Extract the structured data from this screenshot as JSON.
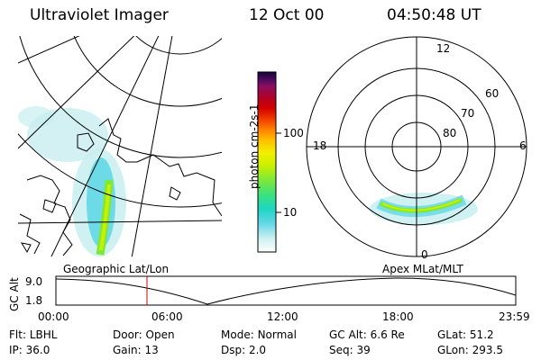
{
  "header": {
    "instrument": "Ultraviolet Imager",
    "date": "12 Oct 00",
    "time": "04:50:48 UT"
  },
  "colorbar": {
    "unit_label": "photon cm-2s-1",
    "ticks": [
      "100",
      "10"
    ],
    "scale": "log",
    "colors": [
      "#ffffff",
      "#c8eef0",
      "#62d7e6",
      "#1fd6c4",
      "#3ce27a",
      "#7ee83a",
      "#c8f000",
      "#f2f000",
      "#ffc000",
      "#ff8000",
      "#f03a00",
      "#d40000",
      "#b00028",
      "#8a1060",
      "#4a0a5a",
      "#14063a"
    ]
  },
  "polar_plot": {
    "mlt_labels": [
      "12",
      "18",
      "6",
      "0"
    ],
    "mlat_labels": [
      "60",
      "70",
      "80"
    ]
  },
  "map_labels": {
    "left": "Geographic Lat/Lon",
    "right": "Apex MLat/MLT"
  },
  "altitude_plot": {
    "ylabel": "GC Alt",
    "yticks": [
      "9.0",
      "1.8"
    ],
    "xticks": [
      "00:00",
      "06:00",
      "12:00",
      "18:00",
      "23:59"
    ],
    "marker_time": "04:50",
    "marker_color": "#d00000"
  },
  "info": {
    "row1": [
      {
        "label": "Flt:",
        "value": "LBHL"
      },
      {
        "label": "Door:",
        "value": "Open"
      },
      {
        "label": "Mode:",
        "value": "Normal"
      },
      {
        "label": "GC Alt:",
        "value": "6.6 Re"
      },
      {
        "label": "GLat:",
        "value": "51.2"
      }
    ],
    "row2": [
      {
        "label": "IP:",
        "value": "36.0"
      },
      {
        "label": "Gain:",
        "value": "13"
      },
      {
        "label": "Dsp:",
        "value": "2.0"
      },
      {
        "label": "Seq:",
        "value": "39"
      },
      {
        "label": "GLon:",
        "value": "293.5"
      }
    ]
  }
}
